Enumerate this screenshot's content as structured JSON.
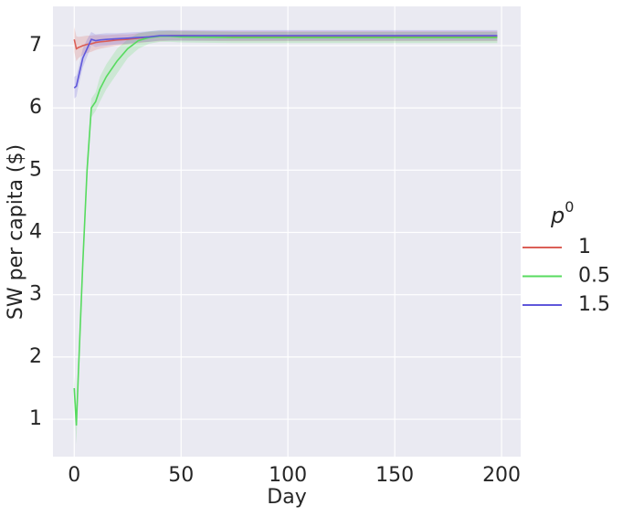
{
  "chart_data": {
    "type": "line",
    "x_label": "Day",
    "y_label": "SW per capita ($)",
    "legend_title": {
      "base": "p",
      "sup": "0"
    },
    "legend_position": "right",
    "grid": true,
    "xlim": [
      -9.95,
      208.95
    ],
    "xticks": [
      0,
      50,
      100,
      150,
      200
    ],
    "ylim": [
      0.4,
      7.63
    ],
    "yticks": [
      1,
      2,
      3,
      4,
      5,
      6,
      7
    ],
    "x": [
      0,
      1,
      2,
      4,
      6,
      8,
      10,
      12,
      15,
      20,
      25,
      30,
      35,
      40,
      45,
      50,
      75,
      100,
      125,
      150,
      175,
      198
    ],
    "series": [
      {
        "name": "1",
        "color": "#db5f57",
        "values": [
          7.1,
          6.95,
          6.97,
          7.0,
          7.02,
          7.03,
          7.05,
          7.06,
          7.07,
          7.09,
          7.1,
          7.12,
          7.14,
          7.15,
          7.16,
          7.16,
          7.15,
          7.15,
          7.15,
          7.15,
          7.15,
          7.15
        ],
        "lower": [
          6.9,
          6.75,
          6.8,
          6.85,
          6.88,
          6.9,
          6.93,
          6.95,
          6.97,
          7.0,
          7.02,
          7.04,
          7.06,
          7.07,
          7.08,
          7.08,
          7.07,
          7.07,
          7.07,
          7.07,
          7.07,
          7.07
        ],
        "upper": [
          7.3,
          7.15,
          7.14,
          7.15,
          7.16,
          7.16,
          7.17,
          7.17,
          7.17,
          7.18,
          7.18,
          7.2,
          7.22,
          7.23,
          7.24,
          7.24,
          7.23,
          7.23,
          7.23,
          7.23,
          7.23,
          7.23
        ]
      },
      {
        "name": "0.5",
        "color": "#57db5f",
        "values": [
          1.5,
          0.9,
          1.8,
          3.5,
          5.0,
          6.0,
          6.1,
          6.3,
          6.5,
          6.75,
          6.95,
          7.08,
          7.13,
          7.15,
          7.15,
          7.14,
          7.13,
          7.13,
          7.13,
          7.13,
          7.13,
          7.13
        ],
        "lower": [
          1.3,
          0.6,
          1.6,
          3.3,
          4.8,
          5.85,
          5.95,
          6.1,
          6.3,
          6.55,
          6.8,
          6.95,
          7.03,
          7.06,
          7.06,
          7.05,
          7.04,
          7.04,
          7.04,
          7.04,
          7.04,
          7.04
        ],
        "upper": [
          1.7,
          1.2,
          2.0,
          3.7,
          5.2,
          6.15,
          6.25,
          6.5,
          6.7,
          6.95,
          7.1,
          7.2,
          7.23,
          7.24,
          7.24,
          7.23,
          7.22,
          7.22,
          7.22,
          7.22,
          7.22,
          7.22
        ]
      },
      {
        "name": "1.5",
        "color": "#5f57db",
        "values": [
          6.32,
          6.35,
          6.5,
          6.8,
          6.95,
          7.1,
          7.08,
          7.09,
          7.1,
          7.11,
          7.12,
          7.13,
          7.14,
          7.16,
          7.16,
          7.16,
          7.16,
          7.16,
          7.16,
          7.16,
          7.16,
          7.16
        ],
        "lower": [
          6.15,
          6.18,
          6.35,
          6.65,
          6.82,
          7.0,
          6.98,
          6.99,
          7.0,
          7.02,
          7.03,
          7.05,
          7.06,
          7.08,
          7.08,
          7.08,
          7.08,
          7.08,
          7.08,
          7.08,
          7.08,
          7.08
        ],
        "upper": [
          6.5,
          6.52,
          6.65,
          6.95,
          7.1,
          7.22,
          7.18,
          7.19,
          7.2,
          7.2,
          7.21,
          7.22,
          7.23,
          7.25,
          7.25,
          7.25,
          7.25,
          7.25,
          7.25,
          7.25,
          7.25,
          7.25
        ]
      }
    ]
  }
}
